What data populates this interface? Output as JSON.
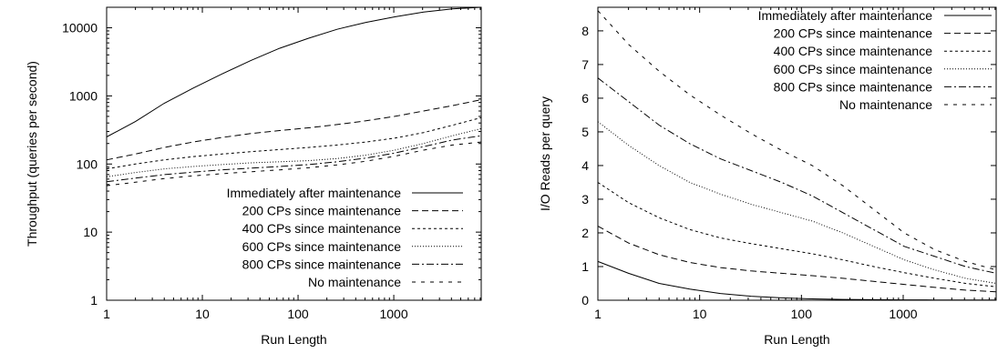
{
  "chart_data": [
    {
      "type": "line",
      "xscale": "log",
      "yscale": "log",
      "xlabel": "Run Length",
      "ylabel": "Throughput (queries per second)",
      "xlim": [
        1,
        8192
      ],
      "ylim": [
        1,
        20000
      ],
      "xticks": [
        {
          "value": 1,
          "label": "1"
        },
        {
          "value": 10,
          "label": "10"
        },
        {
          "value": 100,
          "label": "100"
        },
        {
          "value": 1000,
          "label": "1000"
        }
      ],
      "yticks": [
        {
          "value": 1,
          "label": "1"
        },
        {
          "value": 10,
          "label": "10"
        },
        {
          "value": 100,
          "label": "100"
        },
        {
          "value": 1000,
          "label": "1000"
        },
        {
          "value": 10000,
          "label": "10000"
        }
      ],
      "grid": false,
      "legend_position": "bottom-right",
      "series": [
        {
          "name": "Immediately after maintenance",
          "dash": "solid",
          "x": [
            1,
            2,
            4,
            8,
            16,
            32,
            64,
            128,
            256,
            512,
            1024,
            2048,
            4096,
            8192
          ],
          "y": [
            250,
            420,
            780,
            1300,
            2100,
            3300,
            5000,
            7000,
            9500,
            12000,
            14500,
            17000,
            19000,
            20000
          ]
        },
        {
          "name": "200 CPs since maintenance",
          "dash": "dashed",
          "x": [
            1,
            2,
            4,
            8,
            16,
            32,
            64,
            128,
            256,
            512,
            1024,
            2048,
            4096,
            8192
          ],
          "y": [
            115,
            140,
            175,
            210,
            245,
            280,
            310,
            340,
            380,
            430,
            500,
            600,
            720,
            880
          ]
        },
        {
          "name": "400 CPs since maintenance",
          "dash": "short-dashed",
          "x": [
            1,
            2,
            4,
            8,
            16,
            32,
            64,
            128,
            256,
            512,
            1024,
            2048,
            4096,
            8192
          ],
          "y": [
            85,
            100,
            115,
            128,
            140,
            152,
            163,
            175,
            190,
            210,
            240,
            290,
            370,
            480
          ]
        },
        {
          "name": "600 CPs since maintenance",
          "dash": "dotted",
          "x": [
            1,
            2,
            4,
            8,
            16,
            32,
            64,
            128,
            256,
            512,
            1024,
            2048,
            4096,
            8192
          ],
          "y": [
            65,
            75,
            85,
            92,
            98,
            104,
            108,
            112,
            120,
            135,
            160,
            200,
            260,
            330
          ]
        },
        {
          "name": "800 CPs since maintenance",
          "dash": "dash-dot",
          "x": [
            1,
            2,
            4,
            8,
            16,
            32,
            64,
            128,
            256,
            512,
            1024,
            2048,
            4096,
            8192
          ],
          "y": [
            55,
            62,
            70,
            76,
            82,
            87,
            92,
            98,
            108,
            122,
            145,
            180,
            225,
            260
          ]
        },
        {
          "name": "No maintenance",
          "dash": "sparse-dashed",
          "x": [
            1,
            2,
            4,
            8,
            16,
            32,
            64,
            128,
            256,
            512,
            1024,
            2048,
            4096,
            8192
          ],
          "y": [
            48,
            54,
            61,
            67,
            72,
            77,
            82,
            88,
            97,
            110,
            130,
            160,
            190,
            210
          ]
        }
      ]
    },
    {
      "type": "line",
      "xscale": "log",
      "yscale": "linear",
      "xlabel": "Run Length",
      "ylabel": "I/O Reads per query",
      "xlim": [
        1,
        8192
      ],
      "ylim": [
        0,
        8.7
      ],
      "xticks": [
        {
          "value": 1,
          "label": "1"
        },
        {
          "value": 10,
          "label": "10"
        },
        {
          "value": 100,
          "label": "100"
        },
        {
          "value": 1000,
          "label": "1000"
        }
      ],
      "yticks": [
        {
          "value": 0,
          "label": "0"
        },
        {
          "value": 1,
          "label": "1"
        },
        {
          "value": 2,
          "label": "2"
        },
        {
          "value": 3,
          "label": "3"
        },
        {
          "value": 4,
          "label": "4"
        },
        {
          "value": 5,
          "label": "5"
        },
        {
          "value": 6,
          "label": "6"
        },
        {
          "value": 7,
          "label": "7"
        },
        {
          "value": 8,
          "label": "8"
        }
      ],
      "grid": false,
      "legend_position": "top-right",
      "series": [
        {
          "name": "Immediately after maintenance",
          "dash": "solid",
          "x": [
            1,
            2,
            4,
            8,
            16,
            32,
            64,
            128,
            256,
            512,
            1024,
            2048,
            4096,
            8192
          ],
          "y": [
            1.15,
            0.8,
            0.5,
            0.33,
            0.2,
            0.12,
            0.07,
            0.04,
            0.025,
            0.015,
            0.01,
            0.008,
            0.006,
            0.005
          ]
        },
        {
          "name": "200 CPs since maintenance",
          "dash": "dashed",
          "x": [
            1,
            2,
            4,
            8,
            16,
            32,
            64,
            128,
            256,
            512,
            1024,
            2048,
            4096,
            8192
          ],
          "y": [
            2.2,
            1.7,
            1.35,
            1.12,
            0.97,
            0.87,
            0.8,
            0.73,
            0.65,
            0.56,
            0.47,
            0.38,
            0.3,
            0.25
          ]
        },
        {
          "name": "400 CPs since maintenance",
          "dash": "short-dashed",
          "x": [
            1,
            2,
            4,
            8,
            16,
            32,
            64,
            128,
            256,
            512,
            1024,
            2048,
            4096,
            8192
          ],
          "y": [
            3.5,
            2.9,
            2.45,
            2.1,
            1.85,
            1.68,
            1.53,
            1.38,
            1.2,
            1.0,
            0.82,
            0.65,
            0.5,
            0.4
          ]
        },
        {
          "name": "600 CPs since maintenance",
          "dash": "dotted",
          "x": [
            1,
            2,
            4,
            8,
            16,
            32,
            64,
            128,
            256,
            512,
            1024,
            2048,
            4096,
            8192
          ],
          "y": [
            5.3,
            4.6,
            4.0,
            3.5,
            3.15,
            2.85,
            2.6,
            2.35,
            2.0,
            1.6,
            1.2,
            0.9,
            0.65,
            0.5
          ]
        },
        {
          "name": "800 CPs since maintenance",
          "dash": "dash-dot",
          "x": [
            1,
            2,
            4,
            8,
            16,
            32,
            64,
            128,
            256,
            512,
            1024,
            2048,
            4096,
            8192
          ],
          "y": [
            6.6,
            5.9,
            5.2,
            4.65,
            4.2,
            3.85,
            3.5,
            3.1,
            2.6,
            2.1,
            1.6,
            1.3,
            1.0,
            0.8
          ]
        },
        {
          "name": "No maintenance",
          "dash": "sparse-dashed",
          "x": [
            1,
            2,
            4,
            8,
            16,
            32,
            64,
            128,
            256,
            512,
            1024,
            2048,
            4096,
            8192
          ],
          "y": [
            8.6,
            7.6,
            6.8,
            6.1,
            5.5,
            4.95,
            4.45,
            4.0,
            3.4,
            2.7,
            2.0,
            1.5,
            1.15,
            0.9
          ]
        }
      ]
    }
  ]
}
